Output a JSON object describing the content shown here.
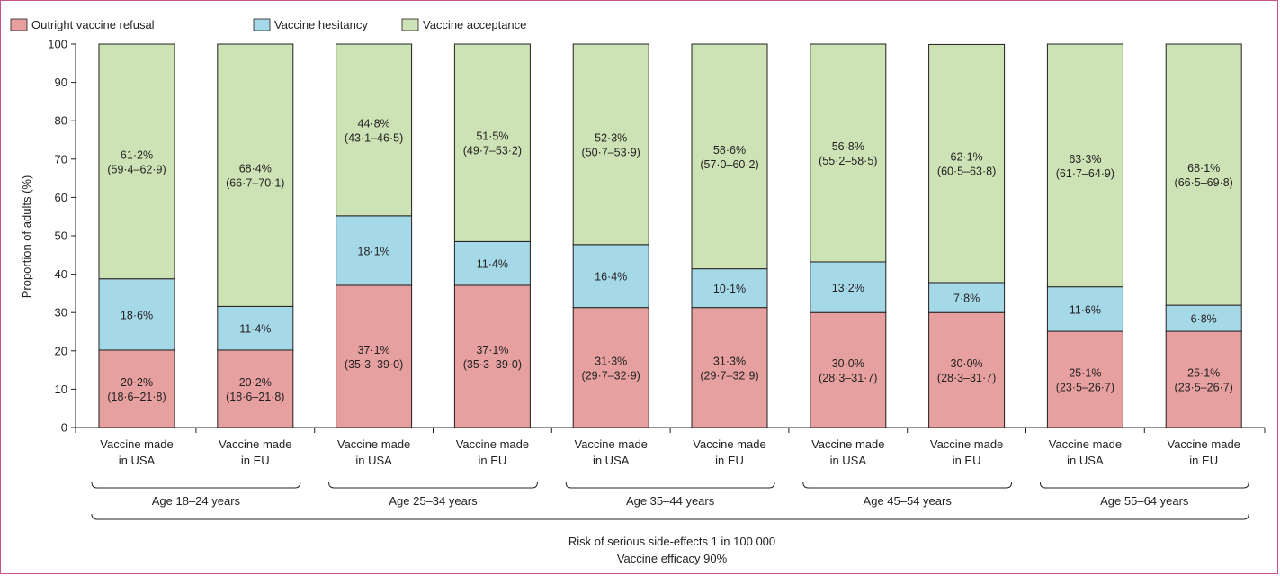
{
  "colors": {
    "refusal": "#e5a09f",
    "hesitancy": "#a6d9e8",
    "acceptance": "#cde3b5",
    "frame": "#c4568a",
    "axis": "#231f20"
  },
  "chart_data": {
    "type": "bar",
    "stacked": true,
    "ylabel": "Proportion of adults (%)",
    "ylim": [
      0,
      100
    ],
    "yticks": [
      0,
      10,
      20,
      30,
      40,
      50,
      60,
      70,
      80,
      90,
      100
    ],
    "grid": false,
    "legend_position": "top-left",
    "categories": [
      "Vaccine made\nin USA",
      "Vaccine made\nin EU",
      "Vaccine made\nin USA",
      "Vaccine made\nin EU",
      "Vaccine made\nin USA",
      "Vaccine made\nin EU",
      "Vaccine made\nin USA",
      "Vaccine made\nin EU",
      "Vaccine made\nin USA",
      "Vaccine made\nin EU"
    ],
    "groups": [
      "Age 18–24 years",
      "Age 25–34 years",
      "Age 35–44 years",
      "Age 45–54 years",
      "Age 55–64 years"
    ],
    "footer": [
      "Risk of serious side-effects 1 in 100 000",
      "Vaccine efficacy 90%"
    ],
    "series": [
      {
        "name": "Outright vaccine refusal",
        "color": "#e5a09f",
        "values": [
          20.2,
          20.2,
          37.1,
          37.1,
          31.3,
          31.3,
          30.0,
          30.0,
          25.1,
          25.1
        ],
        "labels": [
          "20·2%",
          "20·2%",
          "37·1%",
          "37·1%",
          "31·3%",
          "31·3%",
          "30·0%",
          "30·0%",
          "25·1%",
          "25·1%"
        ],
        "ci": [
          "(18·6–21·8)",
          "(18·6–21·8)",
          "(35·3–39·0)",
          "(35·3–39·0)",
          "(29·7–32·9)",
          "(29·7–32·9)",
          "(28·3–31·7)",
          "(28·3–31·7)",
          "(23·5–26·7)",
          "(23·5–26·7)"
        ]
      },
      {
        "name": "Vaccine hesitancy",
        "color": "#a6d9e8",
        "values": [
          18.6,
          11.4,
          18.1,
          11.4,
          16.4,
          10.1,
          13.2,
          7.8,
          11.6,
          6.8
        ],
        "labels": [
          "18·6%",
          "11·4%",
          "18·1%",
          "11·4%",
          "16·4%",
          "10·1%",
          "13·2%",
          "7·8%",
          "11·6%",
          "6·8%"
        ],
        "ci": [
          "",
          "",
          "",
          "",
          "",
          "",
          "",
          "",
          "",
          ""
        ]
      },
      {
        "name": "Vaccine acceptance",
        "color": "#cde3b5",
        "values": [
          61.2,
          68.4,
          44.8,
          51.5,
          52.3,
          58.6,
          56.8,
          62.1,
          63.3,
          68.1
        ],
        "labels": [
          "61·2%",
          "68·4%",
          "44·8%",
          "51·5%",
          "52·3%",
          "58·6%",
          "56·8%",
          "62·1%",
          "63·3%",
          "68·1%"
        ],
        "ci": [
          "(59·4–62·9)",
          "(66·7–70·1)",
          "(43·1–46·5)",
          "(49·7–53·2)",
          "(50·7–53·9)",
          "(57·0–60·2)",
          "(55·2–58·5)",
          "(60·5–63·8)",
          "(61·7–64·9)",
          "(66·5–69·8)"
        ]
      }
    ]
  }
}
